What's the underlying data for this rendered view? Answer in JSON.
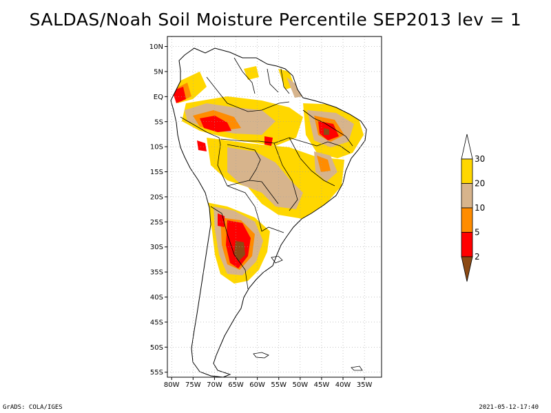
{
  "title": "SALDAS/Noah Soil Moisture Percentile SEP2013 lev = 1",
  "footer": {
    "left": "GrADS: COLA/IGES",
    "right": "2021-05-12-17:40"
  },
  "chart_data": {
    "type": "map",
    "lon_range": [
      -81,
      -31
    ],
    "lat_range": [
      -56,
      12
    ],
    "x_ticks": [
      "80W",
      "75W",
      "70W",
      "65W",
      "60W",
      "55W",
      "50W",
      "45W",
      "40W",
      "35W"
    ],
    "x_tick_values": [
      -80,
      -75,
      -70,
      -65,
      -60,
      -55,
      -50,
      -45,
      -40,
      -35
    ],
    "y_ticks": [
      "10N",
      "5N",
      "EQ",
      "5S",
      "10S",
      "15S",
      "20S",
      "25S",
      "30S",
      "35S",
      "40S",
      "45S",
      "50S",
      "55S"
    ],
    "y_tick_values": [
      10,
      5,
      0,
      -5,
      -10,
      -15,
      -20,
      -25,
      -30,
      -35,
      -40,
      -45,
      -50,
      -55
    ],
    "grid": true,
    "legend": {
      "labels": [
        "2",
        "5",
        "10",
        "20",
        "30"
      ],
      "colors": [
        "#8c4a14",
        "#ff0000",
        "#ff8c00",
        "#d7b48c",
        "#ffd700",
        "#ffffff"
      ]
    }
  }
}
